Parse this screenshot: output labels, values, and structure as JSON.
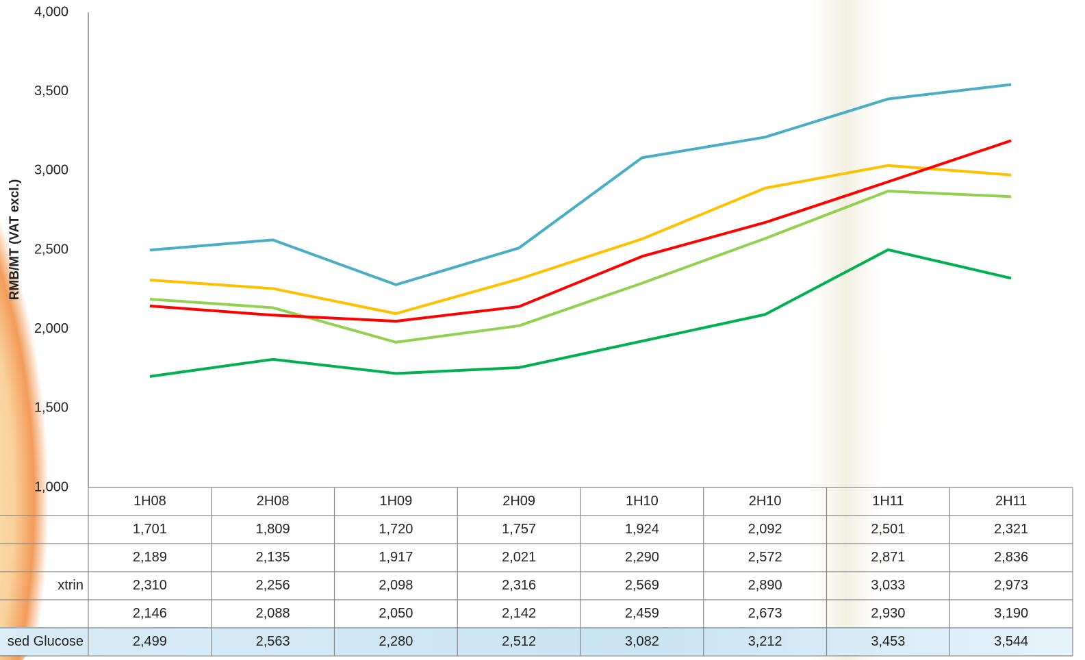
{
  "chart_data": {
    "type": "line",
    "y_label": "RMB/MT (VAT excl.)",
    "categories": [
      "1H08",
      "2H08",
      "1H09",
      "2H09",
      "1H10",
      "2H10",
      "1H11",
      "2H11"
    ],
    "ylim": [
      1000,
      4000
    ],
    "yticks": [
      {
        "value": 1000,
        "label": "1,000"
      },
      {
        "value": 1500,
        "label": "1,500"
      },
      {
        "value": 2000,
        "label": "2,000"
      },
      {
        "value": 2500,
        "label": "2,500"
      },
      {
        "value": 3000,
        "label": "3,000"
      },
      {
        "value": 3500,
        "label": "3,500"
      },
      {
        "value": 4000,
        "label": "4,000"
      }
    ],
    "series": [
      {
        "name": null,
        "color": "#00b050",
        "values": [
          1701,
          1809,
          1720,
          1757,
          1924,
          2092,
          2501,
          2321
        ],
        "value_labels": [
          "1,701",
          "1,809",
          "1,720",
          "1,757",
          "1,924",
          "2,092",
          "2,501",
          "2,321"
        ]
      },
      {
        "name": null,
        "color": "#92d050",
        "values": [
          2189,
          2135,
          1917,
          2021,
          2290,
          2572,
          2871,
          2836
        ],
        "value_labels": [
          "2,189",
          "2,135",
          "1,917",
          "2,021",
          "2,290",
          "2,572",
          "2,871",
          "2,836"
        ]
      },
      {
        "name": "xtrin",
        "color": "#ffc000",
        "values": [
          2310,
          2256,
          2098,
          2316,
          2569,
          2890,
          3033,
          2973
        ],
        "value_labels": [
          "2,310",
          "2,256",
          "2,098",
          "2,316",
          "2,569",
          "2,890",
          "3,033",
          "2,973"
        ]
      },
      {
        "name": null,
        "color": "#ff0000",
        "values": [
          2146,
          2088,
          2050,
          2142,
          2459,
          2673,
          2930,
          3190
        ],
        "value_labels": [
          "2,146",
          "2,088",
          "2,050",
          "2,142",
          "2,459",
          "2,673",
          "2,930",
          "3,190"
        ]
      },
      {
        "name": "sed Glucose",
        "color": "#4bacc6",
        "values": [
          2499,
          2563,
          2280,
          2512,
          3082,
          3212,
          3453,
          3544
        ],
        "value_labels": [
          "2,499",
          "2,563",
          "2,280",
          "2,512",
          "3,082",
          "3,212",
          "3,453",
          "3,544"
        ]
      }
    ]
  }
}
